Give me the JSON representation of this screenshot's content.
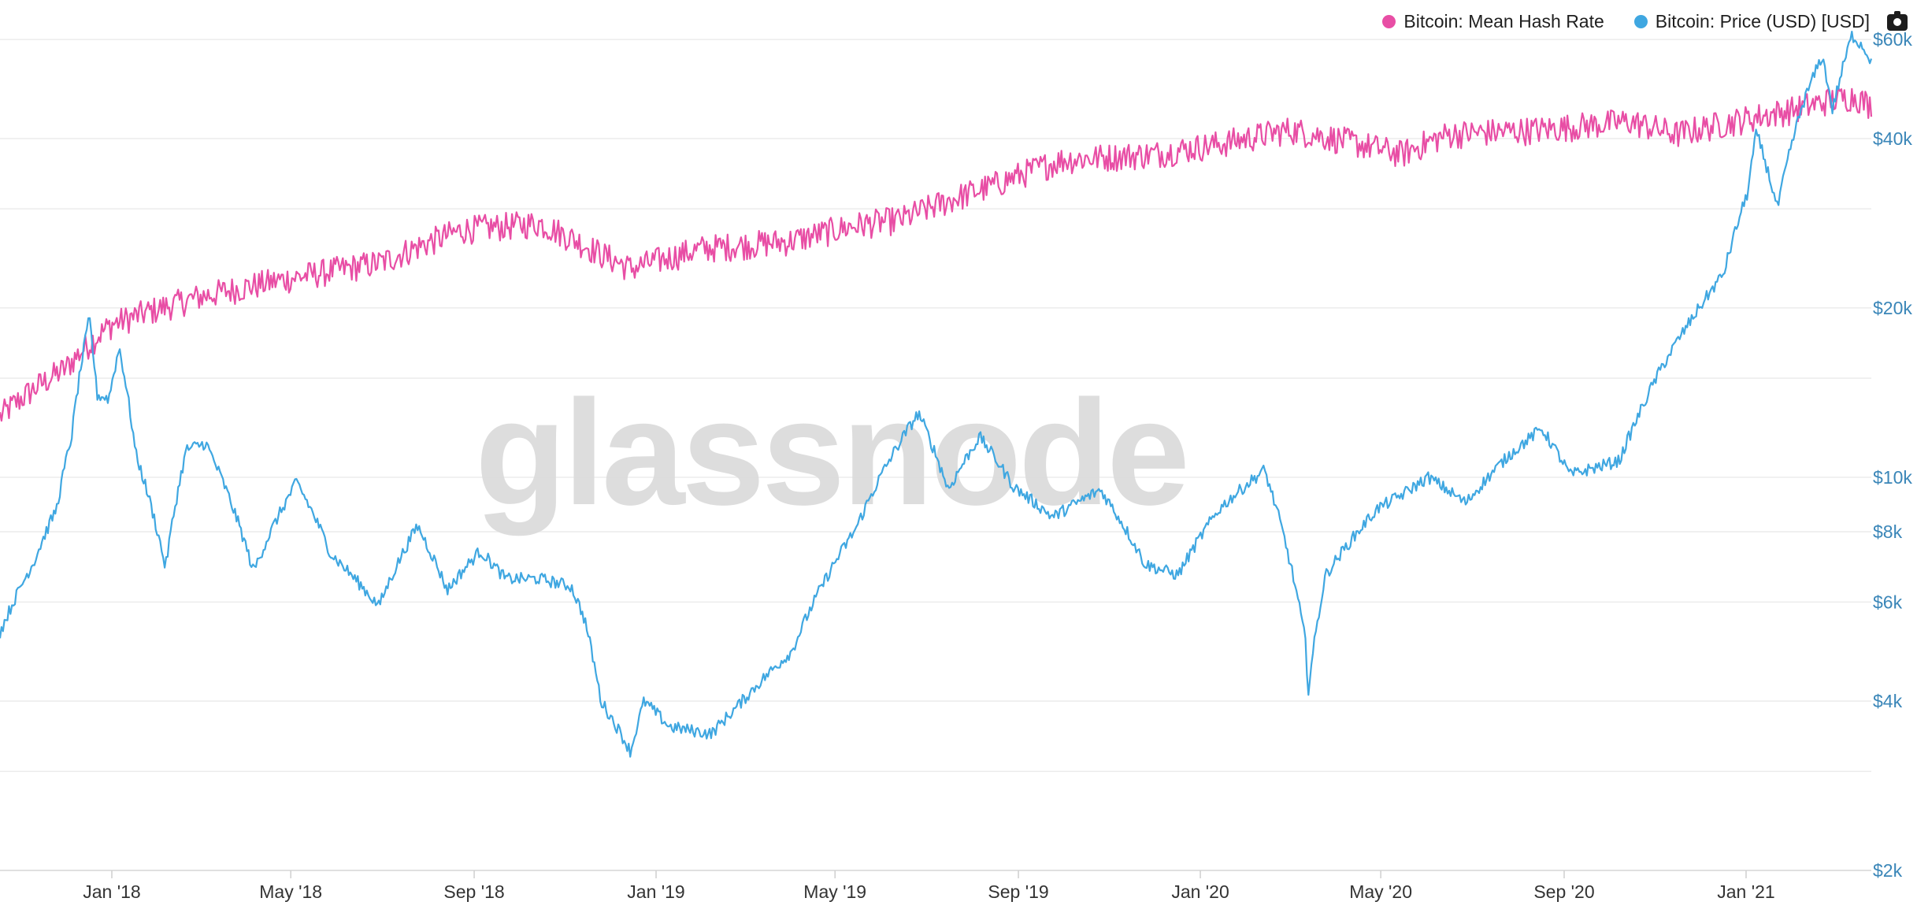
{
  "legend": {
    "hash": "Bitcoin: Mean Hash Rate",
    "price": "Bitcoin: Price (USD) [USD]"
  },
  "watermark": "glassnode",
  "colors": {
    "hash": "#e84ea5",
    "price": "#3fa7e1",
    "axis_text": "#3a86b8",
    "grid": "#ececec"
  },
  "icons": {
    "camera": "camera-icon"
  },
  "chart_data": {
    "type": "line",
    "title": "",
    "x_ticks": [
      "Jan '18",
      "May '18",
      "Sep '18",
      "Jan '19",
      "May '19",
      "Sep '19",
      "Jan '20",
      "May '20",
      "Sep '20",
      "Jan '21"
    ],
    "x_tick_dates": [
      "2018-01-01",
      "2018-05-01",
      "2018-09-01",
      "2019-01-01",
      "2019-05-01",
      "2019-09-01",
      "2020-01-01",
      "2020-05-01",
      "2020-09-01",
      "2021-01-01"
    ],
    "xlim": [
      "2017-10-18",
      "2021-03-26"
    ],
    "y_right": {
      "scale": "log",
      "ticks": [
        {
          "value": 60000,
          "label": "$60k"
        },
        {
          "value": 40000,
          "label": "$40k"
        },
        {
          "value": 20000,
          "label": "$20k"
        },
        {
          "value": 10000,
          "label": "$10k"
        },
        {
          "value": 8000,
          "label": "$8k"
        },
        {
          "value": 6000,
          "label": "$6k"
        },
        {
          "value": 4000,
          "label": "$4k"
        },
        {
          "value": 2000,
          "label": "$2k"
        }
      ],
      "ylim": [
        2000,
        62000
      ]
    },
    "series": [
      {
        "name": "Bitcoin: Price (USD) [USD]",
        "axis": "right",
        "dates": [
          "2017-10-18",
          "2017-11-10",
          "2017-11-25",
          "2017-12-05",
          "2017-12-17",
          "2017-12-22",
          "2017-12-30",
          "2018-01-06",
          "2018-01-17",
          "2018-02-06",
          "2018-02-20",
          "2018-03-05",
          "2018-04-06",
          "2018-05-05",
          "2018-05-28",
          "2018-06-29",
          "2018-07-25",
          "2018-08-14",
          "2018-09-05",
          "2018-09-22",
          "2018-10-15",
          "2018-11-05",
          "2018-11-14",
          "2018-11-25",
          "2018-12-15",
          "2018-12-24",
          "2019-01-10",
          "2019-02-07",
          "2019-02-24",
          "2019-04-02",
          "2019-05-15",
          "2019-06-26",
          "2019-07-16",
          "2019-08-06",
          "2019-08-29",
          "2019-09-24",
          "2019-10-26",
          "2019-11-25",
          "2019-12-17",
          "2020-01-14",
          "2020-02-13",
          "2020-03-12",
          "2020-03-13",
          "2020-03-25",
          "2020-04-29",
          "2020-05-15",
          "2020-06-02",
          "2020-06-27",
          "2020-07-27",
          "2020-08-17",
          "2020-09-05",
          "2020-10-08",
          "2020-10-21",
          "2020-11-05",
          "2020-11-25",
          "2020-12-17",
          "2021-01-02",
          "2021-01-08",
          "2021-01-22",
          "2021-02-08",
          "2021-02-21",
          "2021-02-28",
          "2021-03-13",
          "2021-03-20",
          "2021-03-26"
        ],
        "values": [
          5300,
          7100,
          8800,
          11800,
          19200,
          14000,
          13800,
          17000,
          11000,
          6900,
          11200,
          11500,
          6800,
          9800,
          7300,
          5900,
          8200,
          6300,
          7400,
          6600,
          6600,
          6400,
          5600,
          4000,
          3250,
          4000,
          3600,
          3500,
          3900,
          4900,
          8100,
          13000,
          9500,
          11800,
          9600,
          8500,
          9500,
          7000,
          6700,
          8800,
          10300,
          5000,
          4100,
          6700,
          8800,
          9300,
          10000,
          9000,
          11000,
          12200,
          10100,
          10700,
          12900,
          15600,
          19000,
          23000,
          32000,
          41000,
          30000,
          46000,
          56000,
          45000,
          61000,
          58500,
          55000
        ]
      },
      {
        "name": "Bitcoin: Mean Hash Rate",
        "axis": "hidden",
        "unit": "EH/s",
        "dates": [
          "2017-10-18",
          "2017-12-01",
          "2018-01-01",
          "2018-03-01",
          "2018-05-01",
          "2018-07-01",
          "2018-08-25",
          "2018-10-15",
          "2018-11-25",
          "2018-12-15",
          "2019-02-01",
          "2019-04-01",
          "2019-05-15",
          "2019-06-15",
          "2019-08-15",
          "2019-10-01",
          "2019-12-01",
          "2020-01-15",
          "2020-03-01",
          "2020-04-01",
          "2020-05-15",
          "2020-06-15",
          "2020-08-15",
          "2020-10-15",
          "2020-11-15",
          "2021-01-01",
          "2021-02-01",
          "2021-03-01",
          "2021-03-15",
          "2021-03-26"
        ],
        "values": [
          9,
          14,
          21,
          27,
          32,
          37,
          50,
          53,
          40,
          35,
          42,
          45,
          52,
          55,
          75,
          95,
          100,
          110,
          125,
          115,
          100,
          120,
          125,
          135,
          120,
          138,
          150,
          165,
          170,
          155
        ]
      }
    ]
  }
}
